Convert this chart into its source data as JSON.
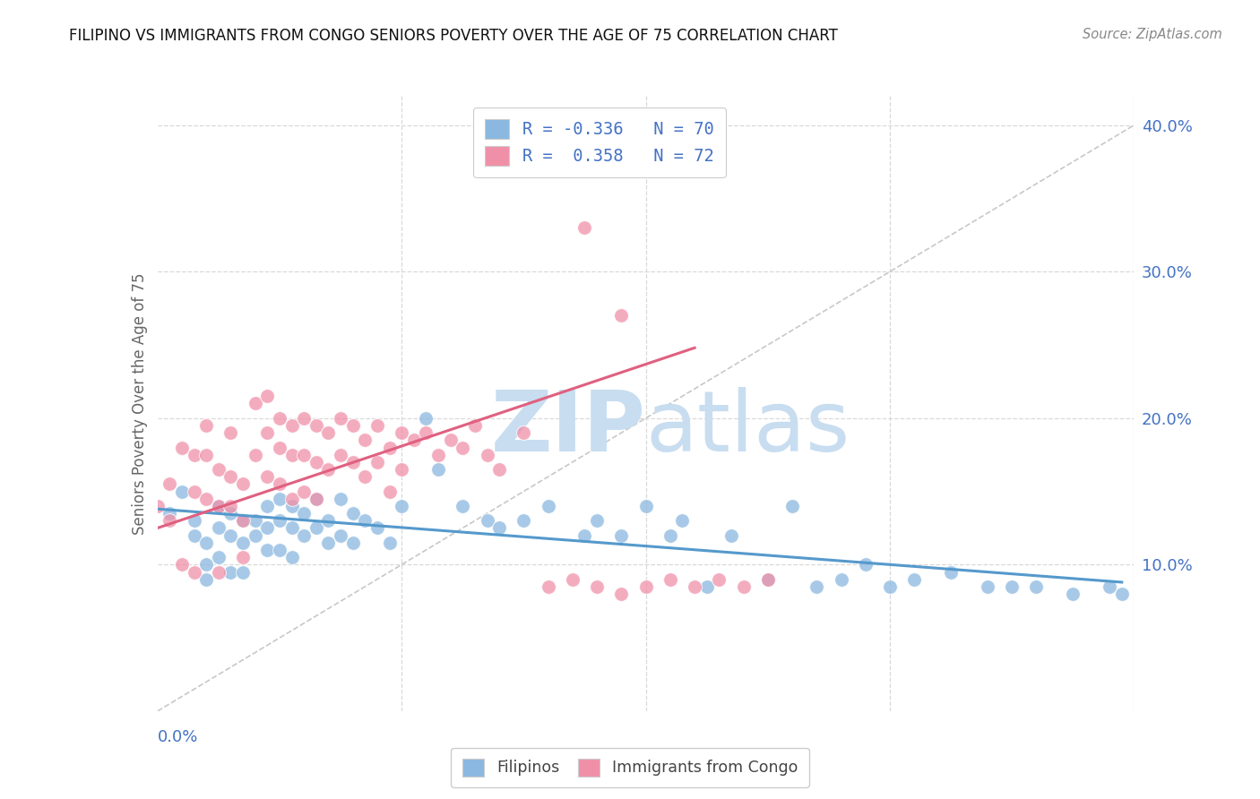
{
  "title": "FILIPINO VS IMMIGRANTS FROM CONGO SENIORS POVERTY OVER THE AGE OF 75 CORRELATION CHART",
  "source": "Source: ZipAtlas.com",
  "ylabel": "Seniors Poverty Over the Age of 75",
  "xlim": [
    0.0,
    0.08
  ],
  "ylim": [
    0.0,
    0.42
  ],
  "watermark_zip": "ZIP",
  "watermark_atlas": "atlas",
  "legend_label_blue": "R = -0.336   N = 70",
  "legend_label_pink": "R =  0.358   N = 72",
  "scatter_color_blue": "#8ab8e0",
  "scatter_color_pink": "#f090a8",
  "line_color_blue": "#5599cc",
  "line_color_pink": "#e06080",
  "diagonal_color": "#c8c8c8",
  "grid_color": "#d8d8d8",
  "title_color": "#111111",
  "source_color": "#888888",
  "axis_label_color": "#666666",
  "tick_color": "#4472c4",
  "watermark_color": "#c8ddf0",
  "background_color": "#ffffff",
  "filipinos_x": [
    0.001,
    0.002,
    0.003,
    0.003,
    0.004,
    0.004,
    0.004,
    0.005,
    0.005,
    0.005,
    0.006,
    0.006,
    0.006,
    0.007,
    0.007,
    0.007,
    0.008,
    0.008,
    0.009,
    0.009,
    0.009,
    0.01,
    0.01,
    0.01,
    0.011,
    0.011,
    0.011,
    0.012,
    0.012,
    0.013,
    0.013,
    0.014,
    0.014,
    0.015,
    0.015,
    0.016,
    0.016,
    0.017,
    0.018,
    0.019,
    0.02,
    0.022,
    0.023,
    0.025,
    0.027,
    0.028,
    0.03,
    0.032,
    0.035,
    0.036,
    0.038,
    0.04,
    0.042,
    0.043,
    0.045,
    0.047,
    0.05,
    0.052,
    0.054,
    0.056,
    0.058,
    0.06,
    0.062,
    0.065,
    0.068,
    0.07,
    0.072,
    0.075,
    0.078,
    0.079
  ],
  "filipinos_y": [
    0.135,
    0.15,
    0.13,
    0.12,
    0.115,
    0.1,
    0.09,
    0.14,
    0.125,
    0.105,
    0.135,
    0.12,
    0.095,
    0.13,
    0.115,
    0.095,
    0.13,
    0.12,
    0.14,
    0.125,
    0.11,
    0.145,
    0.13,
    0.11,
    0.14,
    0.125,
    0.105,
    0.135,
    0.12,
    0.145,
    0.125,
    0.13,
    0.115,
    0.145,
    0.12,
    0.135,
    0.115,
    0.13,
    0.125,
    0.115,
    0.14,
    0.2,
    0.165,
    0.14,
    0.13,
    0.125,
    0.13,
    0.14,
    0.12,
    0.13,
    0.12,
    0.14,
    0.12,
    0.13,
    0.085,
    0.12,
    0.09,
    0.14,
    0.085,
    0.09,
    0.1,
    0.085,
    0.09,
    0.095,
    0.085,
    0.085,
    0.085,
    0.08,
    0.085,
    0.08
  ],
  "congo_x": [
    0.0,
    0.001,
    0.001,
    0.002,
    0.002,
    0.003,
    0.003,
    0.003,
    0.004,
    0.004,
    0.004,
    0.005,
    0.005,
    0.005,
    0.006,
    0.006,
    0.006,
    0.007,
    0.007,
    0.007,
    0.008,
    0.008,
    0.009,
    0.009,
    0.009,
    0.01,
    0.01,
    0.01,
    0.011,
    0.011,
    0.011,
    0.012,
    0.012,
    0.012,
    0.013,
    0.013,
    0.013,
    0.014,
    0.014,
    0.015,
    0.015,
    0.016,
    0.016,
    0.017,
    0.017,
    0.018,
    0.018,
    0.019,
    0.019,
    0.02,
    0.02,
    0.021,
    0.022,
    0.023,
    0.024,
    0.025,
    0.026,
    0.027,
    0.028,
    0.03,
    0.032,
    0.034,
    0.036,
    0.038,
    0.04,
    0.042,
    0.044,
    0.046,
    0.048,
    0.05,
    0.035,
    0.038
  ],
  "congo_y": [
    0.14,
    0.155,
    0.13,
    0.18,
    0.1,
    0.175,
    0.15,
    0.095,
    0.195,
    0.175,
    0.145,
    0.165,
    0.14,
    0.095,
    0.19,
    0.16,
    0.14,
    0.155,
    0.13,
    0.105,
    0.21,
    0.175,
    0.215,
    0.19,
    0.16,
    0.2,
    0.18,
    0.155,
    0.195,
    0.175,
    0.145,
    0.2,
    0.175,
    0.15,
    0.195,
    0.17,
    0.145,
    0.19,
    0.165,
    0.2,
    0.175,
    0.195,
    0.17,
    0.185,
    0.16,
    0.195,
    0.17,
    0.18,
    0.15,
    0.19,
    0.165,
    0.185,
    0.19,
    0.175,
    0.185,
    0.18,
    0.195,
    0.175,
    0.165,
    0.19,
    0.085,
    0.09,
    0.085,
    0.08,
    0.085,
    0.09,
    0.085,
    0.09,
    0.085,
    0.09,
    0.33,
    0.27
  ],
  "blue_line_x": [
    0.0,
    0.079
  ],
  "blue_line_y": [
    0.138,
    0.088
  ],
  "pink_line_x": [
    0.0,
    0.044
  ],
  "pink_line_y": [
    0.125,
    0.248
  ]
}
